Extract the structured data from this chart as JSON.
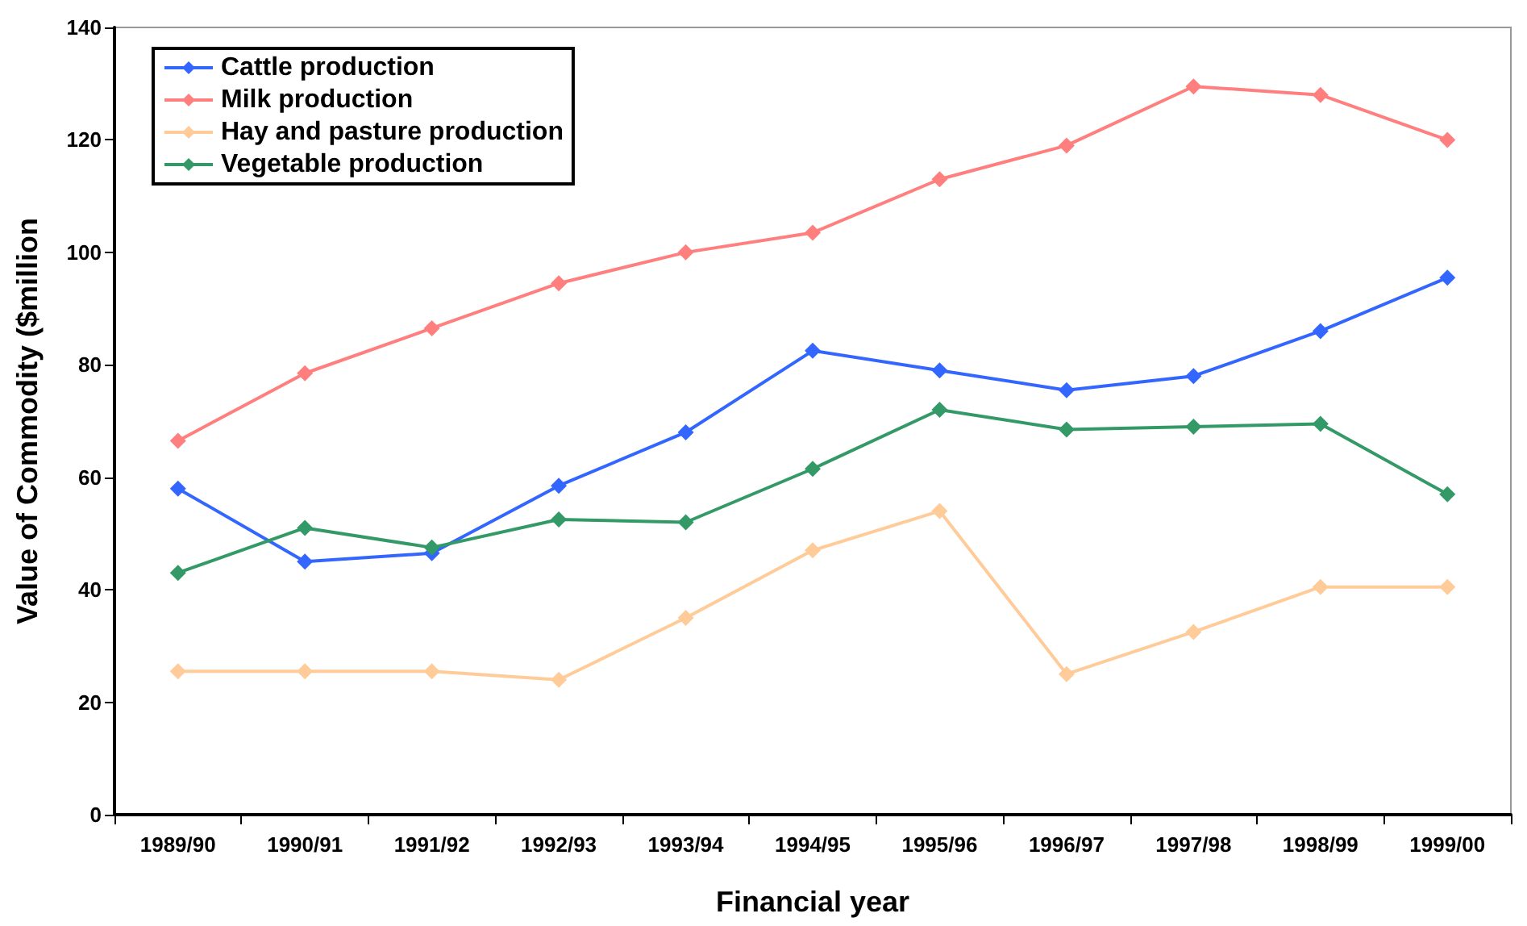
{
  "chart_data": {
    "type": "line",
    "xlabel": "Financial year",
    "ylabel": "Value of Commodity ($million",
    "categories": [
      "1989/90",
      "1990/91",
      "1991/92",
      "1992/93",
      "1993/94",
      "1994/95",
      "1995/96",
      "1996/97",
      "1997/98",
      "1998/99",
      "1999/00"
    ],
    "series": [
      {
        "name": "Cattle production",
        "color": "#3366ff",
        "values": [
          58,
          45,
          46.5,
          58.5,
          68,
          82.5,
          79,
          75.5,
          78,
          86,
          95.5
        ]
      },
      {
        "name": "Milk production",
        "color": "#ff7f7f",
        "values": [
          66.5,
          78.5,
          86.5,
          94.5,
          100,
          103.5,
          113,
          119,
          129.5,
          128,
          120
        ]
      },
      {
        "name": "Hay and pasture production",
        "color": "#ffcc99",
        "values": [
          25.5,
          25.5,
          25.5,
          24,
          35,
          47,
          54,
          25,
          32.5,
          40.5,
          40.5
        ]
      },
      {
        "name": "Vegetable production",
        "color": "#339966",
        "values": [
          43,
          51,
          47.5,
          52.5,
          52,
          61.5,
          72,
          68.5,
          69,
          69.5,
          57
        ]
      }
    ],
    "ylim": [
      0,
      140
    ],
    "yticks": [
      0,
      20,
      40,
      60,
      80,
      100,
      120,
      140
    ],
    "grid": false,
    "legend": "top left",
    "marker": "diamond",
    "line_style": "solid"
  }
}
